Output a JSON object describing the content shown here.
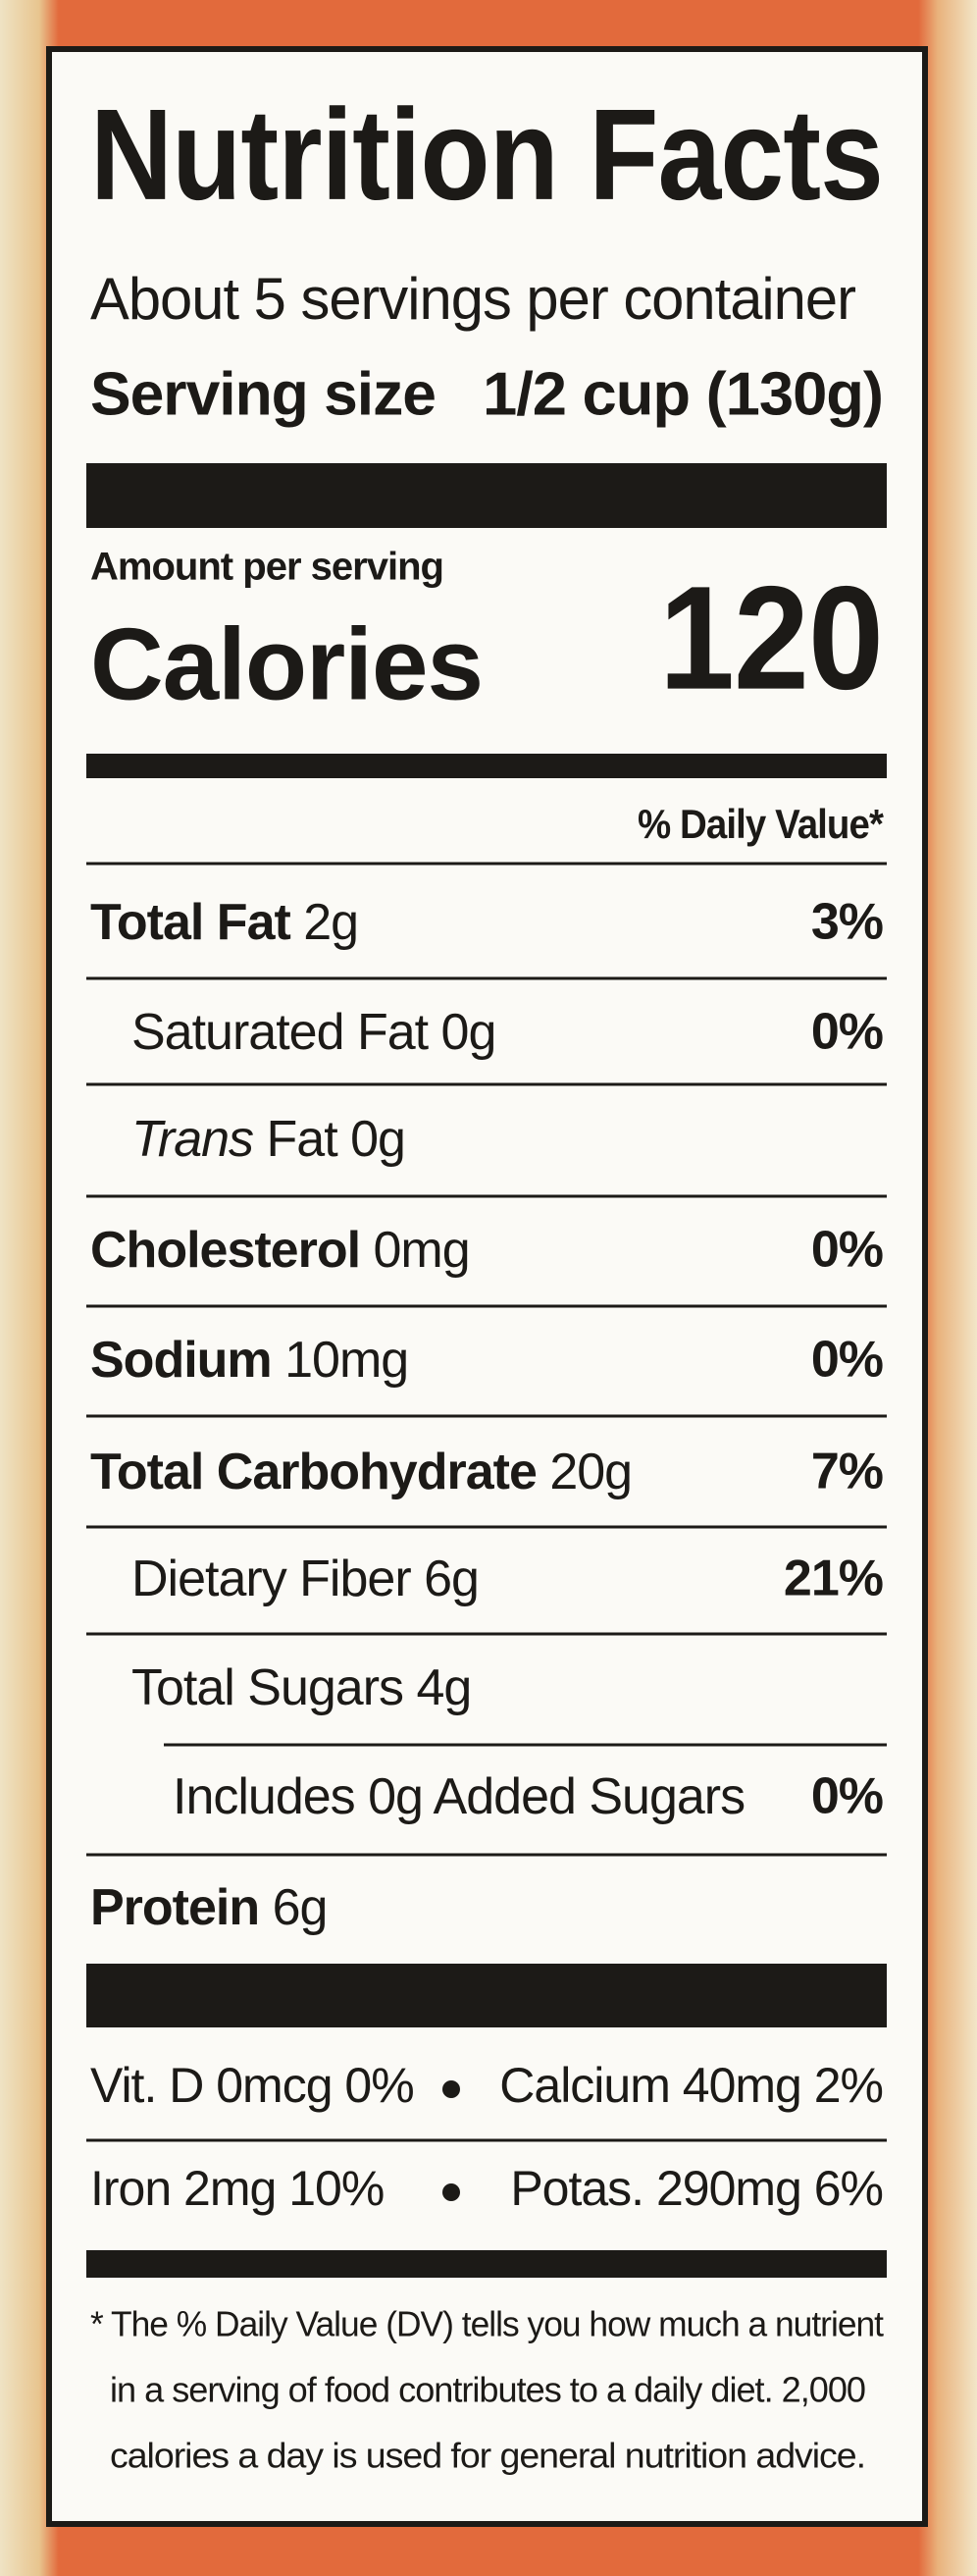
{
  "header": {
    "title": "Nutrition Facts",
    "servings": "About 5 servings per container",
    "serving_size_label": "Serving size",
    "serving_size_value": "1/2 cup (130g)"
  },
  "calories": {
    "amount_per_serving": "Amount per serving",
    "label": "Calories",
    "value": "120"
  },
  "daily_value_header": "% Daily Value*",
  "nutrients": [
    {
      "name": "Total Fat",
      "amount": "2g",
      "dv": "3%"
    },
    {
      "label": "Saturated Fat 0g",
      "dv": "0%"
    },
    {
      "label_italic": "Trans",
      "label": "Fat 0g"
    },
    {
      "name": "Cholesterol",
      "amount": "0mg",
      "dv": "0%"
    },
    {
      "name": "Sodium",
      "amount": "10mg",
      "dv": "0%"
    },
    {
      "name": "Total Carbohydrate",
      "amount": "20g",
      "dv": "7%"
    },
    {
      "label": "Dietary Fiber 6g",
      "dv": "21%"
    },
    {
      "label": "Total Sugars 4g"
    },
    {
      "label": "Includes 0g Added Sugars",
      "dv": "0%"
    },
    {
      "name": "Protein",
      "amount": "6g"
    }
  ],
  "vitamins": [
    [
      "Vit. D 0mcg 0%",
      "Calcium 40mg 2%"
    ],
    [
      "Iron 2mg 10%",
      "Potas. 290mg 6%"
    ]
  ],
  "footnote": [
    "* The % Daily Value (DV) tells you how much a nutrient",
    "in a serving of food contributes to a daily diet. 2,000",
    "calories a day is used for general nutrition advice."
  ]
}
